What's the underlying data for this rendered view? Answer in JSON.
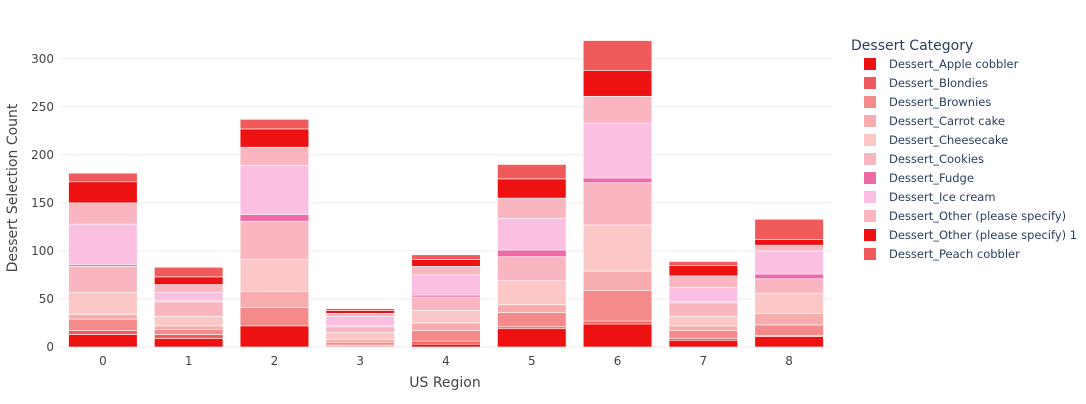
{
  "chart_data": {
    "type": "bar",
    "barmode": "stack",
    "title": "",
    "xlabel": "US Region",
    "ylabel": "Dessert Selection Count",
    "ylim": [
      0,
      330
    ],
    "yticks": [
      0,
      50,
      100,
      150,
      200,
      250,
      300
    ],
    "grid": true,
    "legend_title": "Dessert Category",
    "legend_position": "right",
    "categories": [
      "0",
      "1",
      "2",
      "3",
      "4",
      "5",
      "6",
      "7",
      "8"
    ],
    "series": [
      {
        "name": "Dessert_Apple cobbler",
        "color": "#ee1111",
        "values": [
          13,
          9,
          22,
          1,
          3,
          19,
          24,
          7,
          11
        ]
      },
      {
        "name": "Dessert_Blondies",
        "color": "#f05a5a",
        "values": [
          4,
          4,
          0,
          1,
          3,
          2,
          3,
          2,
          1
        ]
      },
      {
        "name": "Dessert_Brownies",
        "color": "#f48a8a",
        "values": [
          12,
          5,
          19,
          3,
          11,
          15,
          32,
          8,
          11
        ]
      },
      {
        "name": "Dessert_Carrot cake",
        "color": "#f7adad",
        "values": [
          5,
          4,
          17,
          3,
          8,
          8,
          20,
          5,
          12
        ]
      },
      {
        "name": "Dessert_Cheesecake",
        "color": "#fbc7c7",
        "values": [
          23,
          10,
          33,
          7,
          13,
          25,
          48,
          10,
          21
        ]
      },
      {
        "name": "Dessert_Cookies",
        "color": "#f9b6c1",
        "values": [
          27,
          15,
          40,
          6,
          14,
          25,
          44,
          14,
          15
        ]
      },
      {
        "name": "Dessert_Fudge",
        "color": "#ee6aa7",
        "values": [
          2,
          1,
          7,
          1,
          2,
          7,
          5,
          1,
          5
        ]
      },
      {
        "name": "Dessert_Ice cream",
        "color": "#fbbfe2",
        "values": [
          42,
          9,
          51,
          10,
          21,
          33,
          57,
          15,
          24
        ]
      },
      {
        "name": "Dessert_Other (please specify)",
        "color": "#f9b6c1",
        "values": [
          22,
          8,
          19,
          3,
          9,
          21,
          28,
          12,
          6
        ]
      },
      {
        "name": "Dessert_Other (please specify) 1",
        "color": "#ee1111",
        "values": [
          22,
          8,
          19,
          3,
          7,
          20,
          27,
          11,
          6
        ]
      },
      {
        "name": "Dessert_Peach cobbler",
        "color": "#f05a5a",
        "values": [
          9,
          10,
          10,
          2,
          5,
          15,
          31,
          4,
          21
        ]
      }
    ]
  }
}
